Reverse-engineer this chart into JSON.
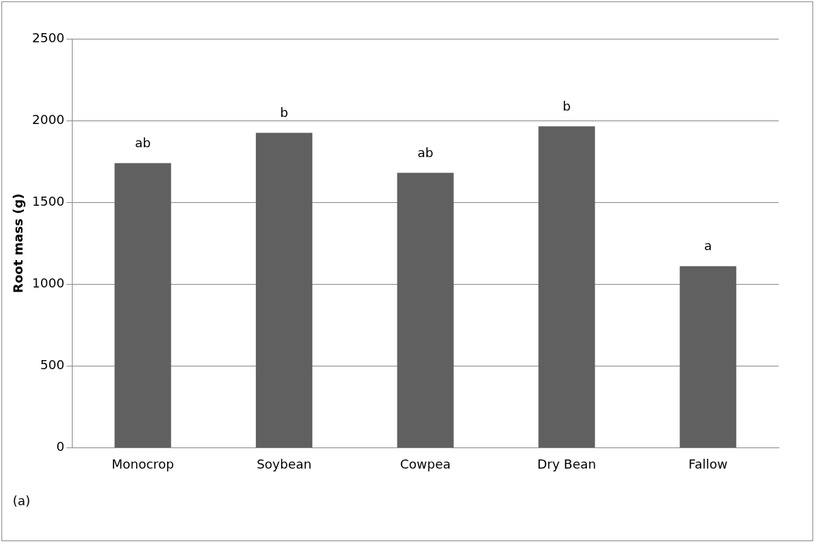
{
  "chart_data": {
    "type": "bar",
    "ylabel": "Root mass (g)",
    "categories": [
      "Monocrop",
      "Soybean",
      "Cowpea",
      "Dry Bean",
      "Fallow"
    ],
    "values": [
      1740,
      1925,
      1680,
      1965,
      1110
    ],
    "color": "#606060",
    "ylim": [
      0,
      2500
    ],
    "yticks": [
      0,
      500,
      1000,
      1500,
      2000,
      2500
    ],
    "grid": "y",
    "legend": false,
    "annotations": [
      {
        "text": "ab",
        "x": "Monocrop",
        "y": 1740
      },
      {
        "text": "b",
        "x": "Soybean",
        "y": 1925
      },
      {
        "text": "ab",
        "x": "Cowpea",
        "y": 1680
      },
      {
        "text": "b",
        "x": "Dry Bean",
        "y": 1965
      },
      {
        "text": "a",
        "x": "Fallow",
        "y": 1110
      },
      "(a)"
    ]
  }
}
